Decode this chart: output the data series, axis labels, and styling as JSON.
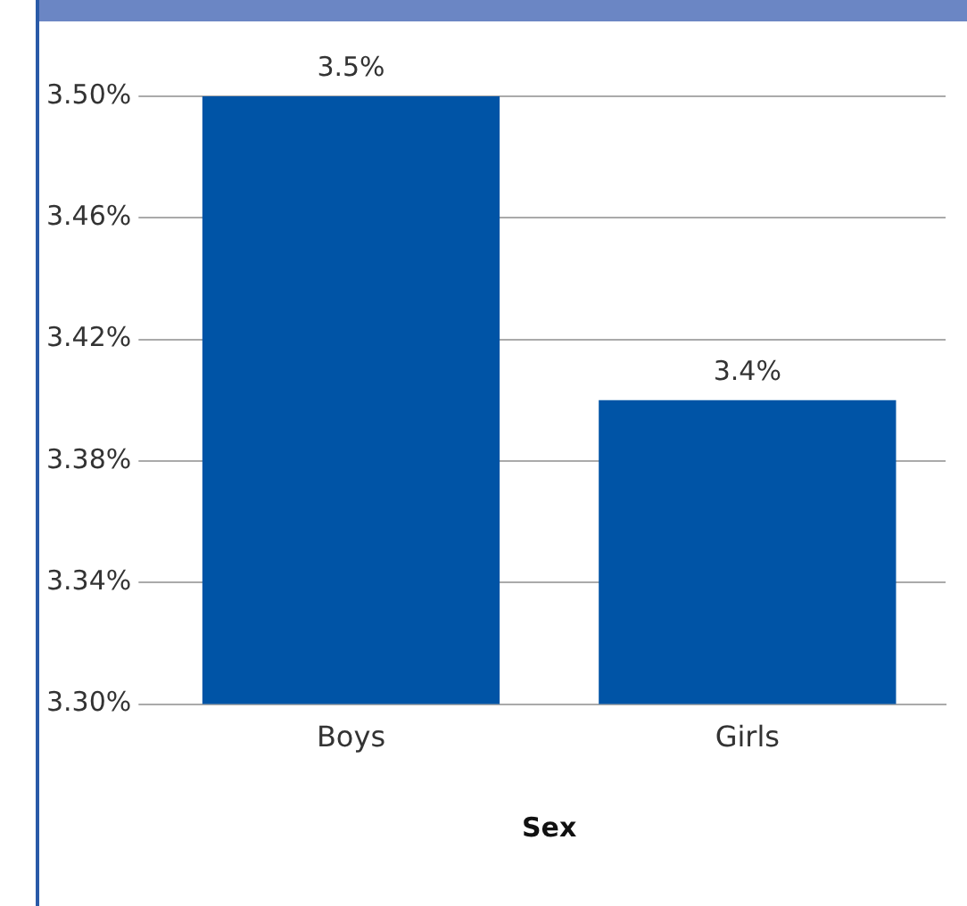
{
  "chart_data": {
    "type": "bar",
    "xlabel": "Sex",
    "categories": [
      "Boys",
      "Girls"
    ],
    "series": [
      {
        "color": "#0054a6",
        "values": [
          3.5,
          3.4
        ],
        "value_labels": [
          "3.5%",
          "3.4%"
        ]
      }
    ],
    "ylim": [
      3.3,
      3.5
    ],
    "yticks": [
      {
        "value": 3.3,
        "label": "3.30%"
      },
      {
        "value": 3.34,
        "label": "3.34%"
      },
      {
        "value": 3.38,
        "label": "3.38%"
      },
      {
        "value": 3.42,
        "label": "3.42%"
      },
      {
        "value": 3.46,
        "label": "3.46%"
      },
      {
        "value": 3.5,
        "label": "3.50%"
      }
    ],
    "grid": "y",
    "legend": false
  }
}
